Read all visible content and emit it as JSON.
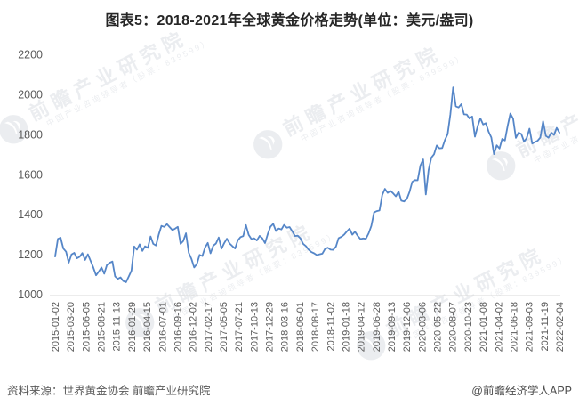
{
  "title": "图表5：2018-2021年全球黄金价格走势(单位：美元/盎司)",
  "footer": {
    "source": "资料来源：世界黄金协会 前瞻产业研究院",
    "credit": "@前瞻经济学人APP"
  },
  "watermark": {
    "brand": "前瞻产业研究院",
    "slogan": "中国产业咨询领导者（股票：839599）"
  },
  "colors": {
    "line": "#5586C8",
    "axis": "#D9D9D9",
    "tick_text": "#595959",
    "title_text": "#262626"
  },
  "chart_data": {
    "type": "line",
    "title": "图表5：2018-2021年全球黄金价格走势(单位：美元/盎司)",
    "xlabel": "",
    "ylabel": "美元/盎司",
    "ylim": [
      1000,
      2200
    ],
    "yticks": [
      1000,
      1200,
      1400,
      1600,
      1800,
      2000,
      2200
    ],
    "grid": false,
    "legend_position": "none",
    "x_label_rotation": -90,
    "x_tick_labels": [
      "2015-01-02",
      "2015-03-20",
      "2015-06-05",
      "2015-08-21",
      "2015-11-13",
      "2016-01-29",
      "2016-04-15",
      "2016-07-01",
      "2016-09-16",
      "2016-12-02",
      "2017-02-17",
      "2017-05-05",
      "2017-07-21",
      "2017-10-13",
      "2017-12-29",
      "2018-03-16",
      "2018-06-01",
      "2018-08-17",
      "2018-11-02",
      "2019-01-18",
      "2019-04-12",
      "2019-06-28",
      "2019-09-13",
      "2019-12-06",
      "2020-03-06",
      "2020-05-22",
      "2020-08-07",
      "2020-10-23",
      "2021-01-08",
      "2021-04-02",
      "2021-06-18",
      "2021-09-03",
      "2021-11-19",
      "2022-02-04"
    ],
    "x_start": "2015-01-02",
    "x_end": "2022-02-04",
    "frequency": "biweekly",
    "series": [
      {
        "name": "全球黄金价格(美元/盎司)",
        "color": "#5586C8",
        "values": [
          1189,
          1277,
          1283,
          1229,
          1213,
          1158,
          1199,
          1207,
          1180,
          1188,
          1206,
          1172,
          1200,
          1168,
          1134,
          1095,
          1113,
          1134,
          1103,
          1146,
          1157,
          1164,
          1089,
          1077,
          1084,
          1066,
          1060,
          1089,
          1118,
          1239,
          1223,
          1250,
          1217,
          1240,
          1232,
          1289,
          1252,
          1244,
          1299,
          1342,
          1337,
          1351,
          1336,
          1321,
          1328,
          1337,
          1252,
          1266,
          1305,
          1208,
          1177,
          1134,
          1152,
          1197,
          1191,
          1234,
          1257,
          1205,
          1243,
          1254,
          1284,
          1228,
          1255,
          1278,
          1254,
          1241,
          1229,
          1269,
          1286,
          1291,
          1346,
          1297,
          1276,
          1280,
          1269,
          1292,
          1280,
          1256,
          1302,
          1338,
          1352,
          1316,
          1329,
          1324,
          1347,
          1333,
          1336,
          1315,
          1291,
          1293,
          1279,
          1252,
          1241,
          1223,
          1211,
          1205,
          1196,
          1200,
          1203,
          1226,
          1233,
          1223,
          1222,
          1238,
          1281,
          1287,
          1298,
          1314,
          1328,
          1298,
          1313,
          1292,
          1276,
          1279,
          1278,
          1305,
          1342,
          1409,
          1416,
          1419,
          1497,
          1527,
          1507,
          1517,
          1505,
          1490,
          1514,
          1468,
          1464,
          1476,
          1511,
          1562,
          1571,
          1570,
          1644,
          1674,
          1499,
          1621,
          1683,
          1700,
          1744,
          1730,
          1731,
          1772,
          1800,
          1901,
          2035,
          1940,
          1934,
          1951,
          1900,
          1899,
          1879,
          1889,
          1788,
          1840,
          1880,
          1849,
          1856,
          1814,
          1784,
          1701,
          1745,
          1729,
          1777,
          1769,
          1843,
          1904,
          1878,
          1782,
          1808,
          1802,
          1763,
          1781,
          1828,
          1754,
          1761,
          1768,
          1784,
          1865,
          1792,
          1783,
          1808,
          1797,
          1832,
          1808
        ]
      }
    ]
  }
}
